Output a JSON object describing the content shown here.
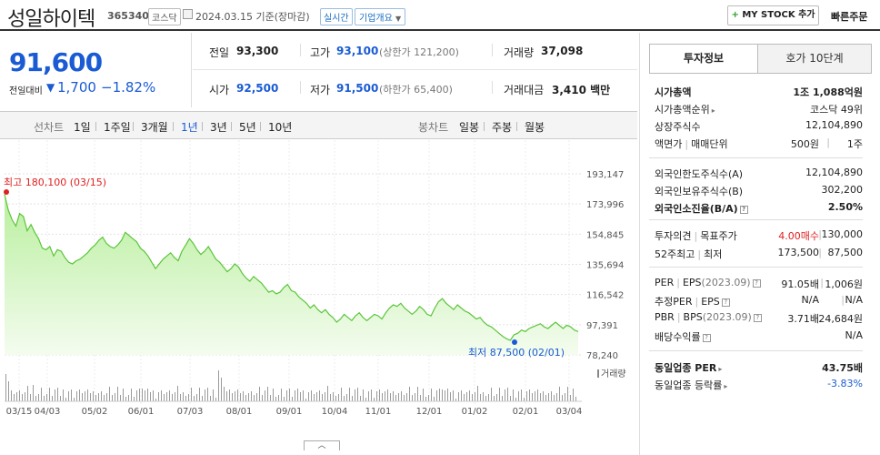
{
  "header": {
    "title": "성일하이텍",
    "code": "365340",
    "market": "코스닥",
    "date": "2024.03.15 기준(장마감)",
    "realtime_label": "실시간",
    "corp_label": "기업개요",
    "mystock_label": "MY STOCK 추가",
    "buy_label": "빠른주문"
  },
  "summary": {
    "price": "91,600",
    "change_label": "전일대비",
    "change": "1,700",
    "change_pct": "−1.82%",
    "prev_close_label": "전일",
    "prev_close": "93,300",
    "high_label": "고가",
    "high": "93,100",
    "upper_limit": "(상한가 121,200)",
    "volume_label": "거래량",
    "volume": "37,098",
    "open_label": "시가",
    "open": "92,500",
    "low_label": "저가",
    "low": "91,500",
    "lower_limit": "(하한가 65,400)",
    "amount_label": "거래대금",
    "amount": "3,410 백만"
  },
  "tabs": {
    "line_label": "선차트",
    "line_items": [
      "1일",
      "1주일",
      "3개월",
      "1년",
      "3년",
      "5년",
      "10년"
    ],
    "active": "1년",
    "candle_label": "봉차트",
    "candle_items": [
      "일봉",
      "주봉",
      "월봉"
    ]
  },
  "chart_data": {
    "type": "area",
    "title": "",
    "y_ticks": [
      "193,147",
      "173,996",
      "154,845",
      "135,694",
      "116,542",
      "97,391",
      "78,240"
    ],
    "ylim": [
      78240,
      193147
    ],
    "x_ticks": [
      "03/15",
      "04/03",
      "05/02",
      "06/01",
      "07/03",
      "08/01",
      "09/01",
      "10/04",
      "11/01",
      "12/01",
      "01/02",
      "02/01",
      "03/04"
    ],
    "high_annotation": "최고 180,100 (03/15)",
    "low_annotation": "최저 87,500 (02/01)",
    "volume_label": "거래량",
    "price_series": [
      180100,
      170000,
      164000,
      160000,
      168000,
      166000,
      157000,
      161000,
      156000,
      152000,
      146000,
      145000,
      147000,
      141000,
      145000,
      144000,
      140000,
      137000,
      136000,
      138000,
      139000,
      141000,
      143000,
      146000,
      148000,
      151000,
      153000,
      149000,
      147000,
      146000,
      148000,
      151000,
      156000,
      154000,
      152000,
      150000,
      146000,
      144000,
      141000,
      137000,
      133000,
      136000,
      139000,
      141000,
      143000,
      140000,
      138000,
      144000,
      148000,
      152000,
      149000,
      145000,
      142000,
      144000,
      147000,
      143000,
      139000,
      137000,
      134000,
      131000,
      133000,
      136000,
      134000,
      130000,
      127000,
      125000,
      128000,
      126000,
      124000,
      121000,
      118000,
      119000,
      117000,
      118000,
      121000,
      123000,
      119000,
      118000,
      115000,
      113000,
      111000,
      108000,
      110000,
      107000,
      105000,
      107000,
      104000,
      102000,
      99000,
      101000,
      104000,
      102000,
      100000,
      103000,
      105000,
      102000,
      100000,
      102000,
      104000,
      103000,
      101000,
      105000,
      108000,
      110000,
      109000,
      111000,
      108000,
      106000,
      104000,
      106000,
      109000,
      107000,
      104000,
      103000,
      108000,
      112000,
      114000,
      111000,
      109000,
      107000,
      110000,
      108000,
      106000,
      105000,
      103000,
      101000,
      102000,
      99000,
      97000,
      96000,
      94000,
      92000,
      90000,
      88500,
      87500,
      91000,
      92000,
      94000,
      93000,
      95000,
      96000,
      97000,
      98000,
      96000,
      95000,
      97000,
      99000,
      97000,
      95000,
      97000,
      96000,
      94000,
      93000
    ]
  },
  "right": {
    "tab_on": "투자정보",
    "tab_off": "호가 10단계",
    "g1": [
      {
        "k": "시가총액",
        "v": "1조 1,088억원",
        "bold": true
      },
      {
        "k": "시가총액순위",
        "v": "코스닥 49위"
      },
      {
        "k": "상장주식수",
        "v": "12,104,890"
      },
      {
        "k": "액면가",
        "k2": "매매단위",
        "v": "500원",
        "v2": "1주"
      }
    ],
    "g2": [
      {
        "k": "외국인한도주식수(A)",
        "v": "12,104,890"
      },
      {
        "k": "외국인보유주식수(B)",
        "v": "302,200"
      },
      {
        "k": "외국인소진율(B/A)",
        "v": "2.50%",
        "bold": true
      }
    ],
    "g3": [
      {
        "k": "투자의견",
        "k2": "목표주가",
        "v": "4.00매수",
        "v2": "130,000"
      },
      {
        "k": "52주최고",
        "k2": "최저",
        "v": "173,500",
        "v2": "87,500"
      }
    ],
    "g4": [
      {
        "k": "PER",
        "k2": "EPS",
        "k3": "(2023.09)",
        "v": "91.05배",
        "v2": "1,006원"
      },
      {
        "k": "추정PER",
        "k2": "EPS",
        "v": "N/A",
        "v2": "N/A"
      },
      {
        "k": "PBR",
        "k2": "BPS",
        "k3": "(2023.09)",
        "v": "3.71배",
        "v2": "24,684원"
      },
      {
        "k": "배당수익률",
        "v": "N/A"
      }
    ],
    "g5": [
      {
        "k": "동일업종 PER",
        "v": "43.75배",
        "bold": true
      },
      {
        "k": "동일업종 등락률",
        "v": "-3.83%"
      }
    ]
  }
}
